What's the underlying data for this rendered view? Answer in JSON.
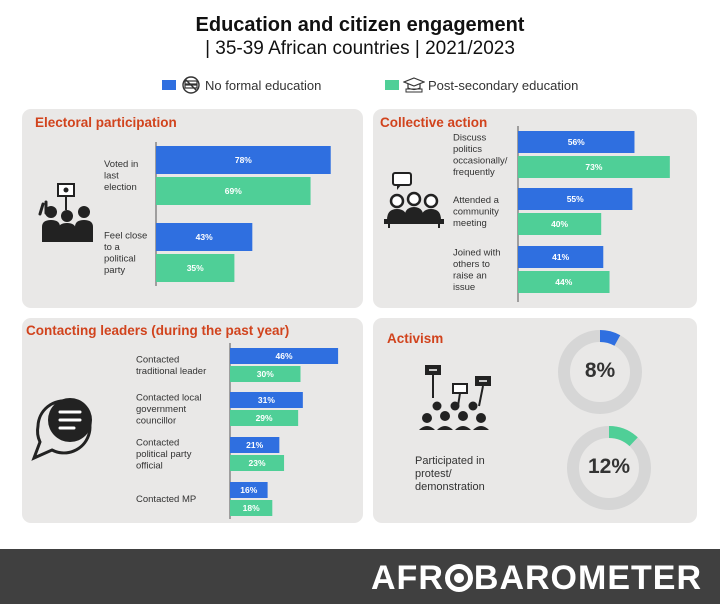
{
  "header": {
    "title": "Education and citizen engagement",
    "subtitle": "| 35-39 African countries | 2021/2023"
  },
  "legend": {
    "no_formal": {
      "label": "No formal education",
      "color": "#2f6fe0",
      "icon": "no-books-icon"
    },
    "post_secondary": {
      "label": "Post-secondary education",
      "color": "#4fcf97",
      "icon": "graduation-cap-icon"
    }
  },
  "colors": {
    "panel_bg": "#e9e8e7",
    "title_accent": "#d1431d",
    "footer_bg": "#404040"
  },
  "footer": {
    "brand_left": "AFR",
    "brand_right": "BAROMETER"
  },
  "chart_data": [
    {
      "type": "bar",
      "orientation": "horizontal",
      "title": "Electoral participation",
      "categories": [
        "Voted in last election",
        "Feel close to a political party"
      ],
      "labels": [
        [
          "Voted in",
          "last",
          "election"
        ],
        [
          "Feel close",
          "to a",
          "political",
          "party"
        ]
      ],
      "series": [
        {
          "name": "No formal education",
          "values": [
            78,
            43
          ]
        },
        {
          "name": "Post-secondary education",
          "values": [
            69,
            35
          ]
        }
      ],
      "unit": "%"
    },
    {
      "type": "bar",
      "orientation": "horizontal",
      "title": "Collective action",
      "categories": [
        "Discuss politics occasionally/ frequently",
        "Attended a community meeting",
        "Joined with others to raise an issue"
      ],
      "labels": [
        [
          "Discuss",
          "politics",
          "occasionally/",
          "frequently"
        ],
        [
          "Attended a",
          "community",
          "meeting"
        ],
        [
          "Joined with",
          "others to",
          "raise an",
          "issue"
        ]
      ],
      "series": [
        {
          "name": "No formal education",
          "values": [
            56,
            55,
            41
          ]
        },
        {
          "name": "Post-secondary education",
          "values": [
            73,
            40,
            44
          ]
        }
      ],
      "unit": "%"
    },
    {
      "type": "bar",
      "orientation": "horizontal",
      "title": "Contacting leaders (during the past year)",
      "categories": [
        "Contacted traditional leader",
        "Contacted local government councillor",
        "Contacted political party official",
        "Contacted MP"
      ],
      "labels": [
        [
          "Contacted",
          "traditional leader"
        ],
        [
          "Contacted local",
          "government",
          "councillor"
        ],
        [
          "Contacted",
          "political party",
          "official"
        ],
        [
          "Contacted MP"
        ]
      ],
      "series": [
        {
          "name": "No formal education",
          "values": [
            46,
            31,
            21,
            16
          ]
        },
        {
          "name": "Post-secondary education",
          "values": [
            30,
            29,
            23,
            18
          ]
        }
      ],
      "unit": "%"
    },
    {
      "type": "pie",
      "variant": "donut",
      "title": "Activism",
      "category": "Participated in protest/ demonstration",
      "label_lines": [
        "Participated in",
        "protest/",
        "demonstration"
      ],
      "series": [
        {
          "name": "No formal education",
          "value": 8,
          "display": "8%"
        },
        {
          "name": "Post-secondary education",
          "value": 12,
          "display": "12%"
        }
      ],
      "unit": "%"
    }
  ]
}
